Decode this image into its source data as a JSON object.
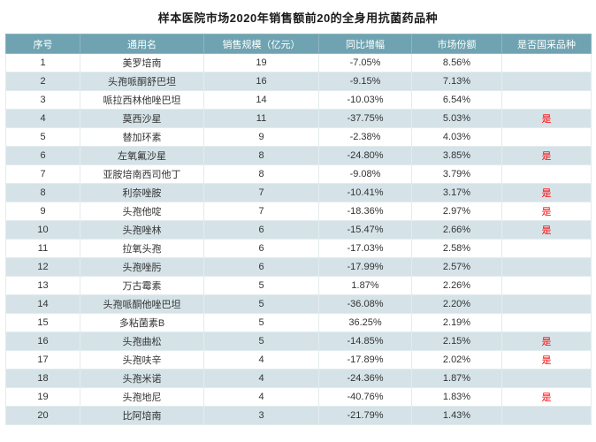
{
  "chart_data": {
    "type": "table",
    "title": "样本医院市场2020年销售额前20的全身用抗菌药品种",
    "columns": [
      "序号",
      "通用名",
      "销售规模（亿元）",
      "同比增幅",
      "市场份额",
      "是否国采品种"
    ],
    "rows": [
      [
        "1",
        "美罗培南",
        "19",
        "-7.05%",
        "8.56%",
        ""
      ],
      [
        "2",
        "头孢哌酮舒巴坦",
        "16",
        "-9.15%",
        "7.13%",
        ""
      ],
      [
        "3",
        "哌拉西林他唑巴坦",
        "14",
        "-10.03%",
        "6.54%",
        ""
      ],
      [
        "4",
        "莫西沙星",
        "11",
        "-37.75%",
        "5.03%",
        "是"
      ],
      [
        "5",
        "替加环素",
        "9",
        "-2.38%",
        "4.03%",
        ""
      ],
      [
        "6",
        "左氧氟沙星",
        "8",
        "-24.80%",
        "3.85%",
        "是"
      ],
      [
        "7",
        "亚胺培南西司他丁",
        "8",
        "-9.08%",
        "3.79%",
        ""
      ],
      [
        "8",
        "利奈唑胺",
        "7",
        "-10.41%",
        "3.17%",
        "是"
      ],
      [
        "9",
        "头孢他啶",
        "7",
        "-18.36%",
        "2.97%",
        "是"
      ],
      [
        "10",
        "头孢唑林",
        "6",
        "-15.47%",
        "2.66%",
        "是"
      ],
      [
        "11",
        "拉氧头孢",
        "6",
        "-17.03%",
        "2.58%",
        ""
      ],
      [
        "12",
        "头孢唑肟",
        "6",
        "-17.99%",
        "2.57%",
        ""
      ],
      [
        "13",
        "万古霉素",
        "5",
        "1.87%",
        "2.26%",
        ""
      ],
      [
        "14",
        "头孢哌酮他唑巴坦",
        "5",
        "-36.08%",
        "2.20%",
        ""
      ],
      [
        "15",
        "多粘菌素B",
        "5",
        "36.25%",
        "2.19%",
        ""
      ],
      [
        "16",
        "头孢曲松",
        "5",
        "-14.85%",
        "2.15%",
        "是"
      ],
      [
        "17",
        "头孢呋辛",
        "4",
        "-17.89%",
        "2.02%",
        "是"
      ],
      [
        "18",
        "头孢米诺",
        "4",
        "-24.36%",
        "1.87%",
        ""
      ],
      [
        "19",
        "头孢地尼",
        "4",
        "-40.76%",
        "1.83%",
        "是"
      ],
      [
        "20",
        "比阿培南",
        "3",
        "-21.79%",
        "1.43%",
        ""
      ]
    ]
  },
  "colors": {
    "header_bg": "#6FA3B1",
    "row_alt_bg": "#D5E3E8",
    "procurement_highlight": "#FF0000"
  }
}
